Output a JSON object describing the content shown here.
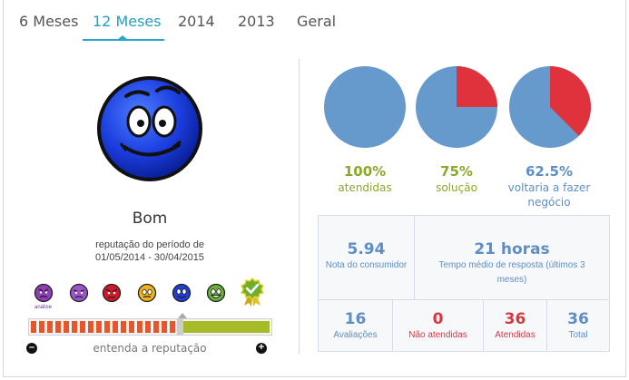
{
  "tabs": [
    {
      "label": "6 Meses"
    },
    {
      "label": "12 Meses"
    },
    {
      "label": "2014"
    },
    {
      "label": "2013"
    },
    {
      "label": "Geral"
    }
  ],
  "active_tab": "12 Meses",
  "reputation": {
    "label": "Bom",
    "period_line1": "reputação do período de",
    "period_line2": "01/05/2014 - 30/04/2015",
    "mini_label": "análise",
    "understand_label": "entenda a reputação",
    "bar_fill_fraction": 0.62
  },
  "metrics": [
    {
      "value": "100%",
      "label": "atendidas",
      "fraction": 1.0,
      "color": "#8aa929"
    },
    {
      "value": "75%",
      "label": "solução",
      "fraction": 0.75,
      "color": "#8aa929"
    },
    {
      "value": "62.5%",
      "label": "voltaria a fazer negócio",
      "fraction": 0.625,
      "color": "#5e8fc4"
    }
  ],
  "colors": {
    "accent": "#2ba6c9",
    "pie_blue": "#6699cc",
    "pie_red": "#e0323c",
    "green": "#8aa929",
    "blue_text": "#5e8fc4",
    "red_text": "#d9363e"
  },
  "stats": {
    "nota": {
      "value": "5.94",
      "label": "Nota do consumidor"
    },
    "tempo": {
      "value": "21 horas",
      "label": "Tempo médio de resposta (últimos 3 meses)"
    },
    "avaliacoes": {
      "value": "16",
      "label": "Avaliações"
    },
    "nao_atendidas": {
      "value": "0",
      "label": "Não atendidas"
    },
    "atendidas": {
      "value": "36",
      "label": "Atendidas"
    },
    "total": {
      "value": "36",
      "label": "Total"
    }
  },
  "icons": [
    "smiley-face-icon",
    "angry-purple-icon",
    "sad-purple-icon",
    "angry-red-icon",
    "neutral-yellow-icon",
    "happy-blue-icon",
    "happy-green-icon",
    "badge-checkmark-icon"
  ]
}
